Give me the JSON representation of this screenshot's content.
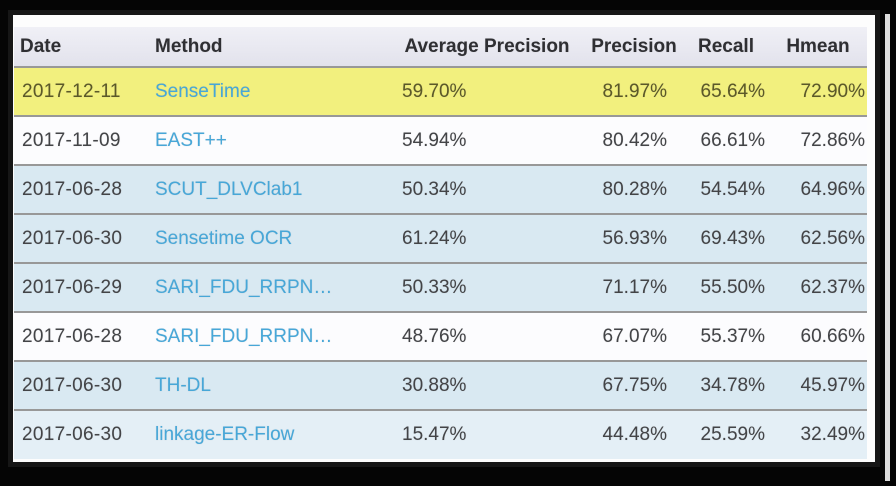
{
  "colors": {
    "page_bg": "#050505",
    "page_white": "#fdfdfd",
    "frame_border": "#161616",
    "header_bg_top": "#f0f0f6",
    "header_bg": "#e2e2ec",
    "header_text": "#2f2f33",
    "body_text": "#434447",
    "yellow_row_text": "#5b5828",
    "separator": "#989898",
    "row_yellow": "#f2f07e",
    "row_white": "#fcfcfe",
    "row_blue": "#d9e9f2",
    "row_blue_light": "#e4eff6",
    "link_blue": "#47a7d8"
  },
  "table": {
    "columns": [
      {
        "key": "date",
        "label": "Date"
      },
      {
        "key": "method",
        "label": "Method"
      },
      {
        "key": "avg_precision",
        "label": "Average Precision"
      },
      {
        "key": "precision",
        "label": "Precision"
      },
      {
        "key": "recall",
        "label": "Recall"
      },
      {
        "key": "hmean",
        "label": "Hmean"
      }
    ],
    "rows": [
      {
        "date": "2017-12-11",
        "method": "SenseTime",
        "avg_precision": "59.70%",
        "precision": "81.97%",
        "recall": "65.64%",
        "hmean": "72.90%",
        "row_style": "yellow"
      },
      {
        "date": "2017-11-09",
        "method": "EAST++",
        "avg_precision": "54.94%",
        "precision": "80.42%",
        "recall": "66.61%",
        "hmean": "72.86%",
        "row_style": "white"
      },
      {
        "date": "2017-06-28",
        "method": "SCUT_DLVClab1",
        "avg_precision": "50.34%",
        "precision": "80.28%",
        "recall": "54.54%",
        "hmean": "64.96%",
        "row_style": "blue"
      },
      {
        "date": "2017-06-30",
        "method": "Sensetime OCR",
        "avg_precision": "61.24%",
        "precision": "56.93%",
        "recall": "69.43%",
        "hmean": "62.56%",
        "row_style": "blue"
      },
      {
        "date": "2017-06-29",
        "method": "SARI_FDU_RRPN…",
        "avg_precision": "50.33%",
        "precision": "71.17%",
        "recall": "55.50%",
        "hmean": "62.37%",
        "row_style": "blue"
      },
      {
        "date": "2017-06-28",
        "method": "SARI_FDU_RRPN…",
        "avg_precision": "48.76%",
        "precision": "67.07%",
        "recall": "55.37%",
        "hmean": "60.66%",
        "row_style": "white"
      },
      {
        "date": "2017-06-30",
        "method": "TH-DL",
        "avg_precision": "30.88%",
        "precision": "67.75%",
        "recall": "34.78%",
        "hmean": "45.97%",
        "row_style": "blue"
      },
      {
        "date": "2017-06-30",
        "method": "linkage-ER-Flow",
        "avg_precision": "15.47%",
        "precision": "44.48%",
        "recall": "25.59%",
        "hmean": "32.49%",
        "row_style": "blue_light"
      }
    ]
  }
}
